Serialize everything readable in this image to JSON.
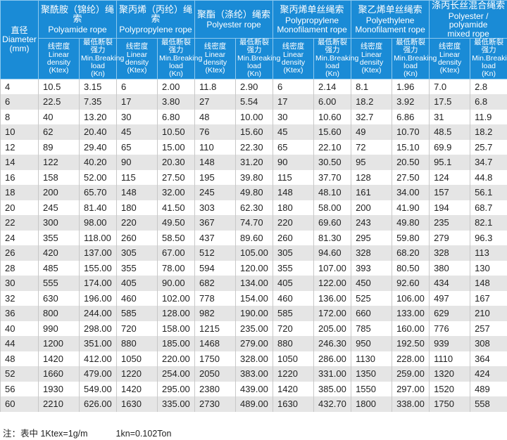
{
  "header": {
    "diameter": [
      "直径",
      "Diameter",
      "(mm)"
    ]
  },
  "groups": [
    {
      "zh": "聚酰胺（锦纶）绳索",
      "en": [
        "Polyamide rope"
      ],
      "columns": [
        {
          "zh": "线密度",
          "en": [
            "Linear density",
            "(Ktex)"
          ]
        },
        {
          "zh": "最低断裂强力",
          "en": [
            "Min.Breaking",
            "load",
            "(Kn)"
          ]
        }
      ]
    },
    {
      "zh": "聚丙烯（丙纶）绳索",
      "en": [
        "Polypropylene rope"
      ],
      "columns": [
        {
          "zh": "线密度",
          "en": [
            "Linear density",
            "(Ktex)"
          ]
        },
        {
          "zh": "最低断裂强力",
          "en": [
            "Min.Breaking",
            "load",
            "(Kn)"
          ]
        }
      ]
    },
    {
      "zh": "聚酯（涤纶）绳索",
      "en": [
        "Polyester rope"
      ],
      "columns": [
        {
          "zh": "线密度",
          "en": [
            "Linear density",
            "(Ktex)"
          ]
        },
        {
          "zh": "最低断裂强力",
          "en": [
            "Min.Breaking",
            "load",
            "(Kn)"
          ]
        }
      ]
    },
    {
      "zh": "聚丙烯单丝绳索",
      "en": [
        "Polypropylene",
        "Monofilament rope"
      ],
      "columns": [
        {
          "zh": "线密度",
          "en": [
            "Linear density",
            "(Ktex)"
          ]
        },
        {
          "zh": "最低断裂强力",
          "en": [
            "Min.Breaking",
            "load",
            "(Kn)"
          ]
        }
      ]
    },
    {
      "zh": "聚乙烯单丝绳索",
      "en": [
        "Polyethylene",
        "Monofilament rope"
      ],
      "columns": [
        {
          "zh": "线密度",
          "en": [
            "Linear density",
            "(Ktex)"
          ]
        },
        {
          "zh": "最低断裂强力",
          "en": [
            "Min.Breaking",
            "load",
            "(Kn)"
          ]
        }
      ]
    },
    {
      "zh": "涤丙长丝混合绳索",
      "en": [
        "Polyester / polyamide",
        "mixed rope"
      ],
      "columns": [
        {
          "zh": "线密度",
          "en": [
            "Linear density",
            "(Ktex)"
          ]
        },
        {
          "zh": "最低断裂强力",
          "en": [
            "Min.Breaking",
            "load",
            "(Kn)"
          ]
        }
      ]
    }
  ],
  "rows": [
    [
      "4",
      "10.5",
      "3.15",
      "6",
      "2.00",
      "11.8",
      "2.90",
      "6",
      "2.14",
      "8.1",
      "1.96",
      "7.0",
      "2.8"
    ],
    [
      "6",
      "22.5",
      "7.35",
      "17",
      "3.80",
      "27",
      "5.54",
      "17",
      "6.00",
      "18.2",
      "3.92",
      "17.5",
      "6.8"
    ],
    [
      "8",
      "40",
      "13.20",
      "30",
      "6.80",
      "48",
      "10.00",
      "30",
      "10.60",
      "32.7",
      "6.86",
      "31",
      "11.9"
    ],
    [
      "10",
      "62",
      "20.40",
      "45",
      "10.50",
      "76",
      "15.60",
      "45",
      "15.60",
      "49",
      "10.70",
      "48.5",
      "18.2"
    ],
    [
      "12",
      "89",
      "29.40",
      "65",
      "15.00",
      "110",
      "22.30",
      "65",
      "22.10",
      "72",
      "15.10",
      "69.9",
      "25.7"
    ],
    [
      "14",
      "122",
      "40.20",
      "90",
      "20.30",
      "148",
      "31.20",
      "90",
      "30.50",
      "95",
      "20.50",
      "95.1",
      "34.7"
    ],
    [
      "16",
      "158",
      "52.00",
      "115",
      "27.50",
      "195",
      "39.80",
      "115",
      "37.70",
      "128",
      "27.50",
      "124",
      "44.8"
    ],
    [
      "18",
      "200",
      "65.70",
      "148",
      "32.00",
      "245",
      "49.80",
      "148",
      "48.10",
      "161",
      "34.00",
      "157",
      "56.1"
    ],
    [
      "20",
      "245",
      "81.40",
      "180",
      "41.50",
      "303",
      "62.30",
      "180",
      "58.00",
      "200",
      "41.90",
      "194",
      "68.7"
    ],
    [
      "22",
      "300",
      "98.00",
      "220",
      "49.50",
      "367",
      "74.70",
      "220",
      "69.60",
      "243",
      "49.80",
      "235",
      "82.1"
    ],
    [
      "24",
      "355",
      "118.00",
      "260",
      "58.50",
      "437",
      "89.60",
      "260",
      "81.30",
      "295",
      "59.80",
      "279",
      "96.3"
    ],
    [
      "26",
      "420",
      "137.00",
      "305",
      "67.00",
      "512",
      "105.00",
      "305",
      "94.60",
      "328",
      "68.20",
      "328",
      "113"
    ],
    [
      "28",
      "485",
      "155.00",
      "355",
      "78.00",
      "594",
      "120.00",
      "355",
      "107.00",
      "393",
      "80.50",
      "380",
      "130"
    ],
    [
      "30",
      "555",
      "174.00",
      "405",
      "90.00",
      "682",
      "134.00",
      "405",
      "122.00",
      "450",
      "92.60",
      "434",
      "148"
    ],
    [
      "32",
      "630",
      "196.00",
      "460",
      "102.00",
      "778",
      "154.00",
      "460",
      "136.00",
      "525",
      "106.00",
      "497",
      "167"
    ],
    [
      "36",
      "800",
      "244.00",
      "585",
      "128.00",
      "982",
      "190.00",
      "585",
      "172.00",
      "660",
      "133.00",
      "629",
      "210"
    ],
    [
      "40",
      "990",
      "298.00",
      "720",
      "158.00",
      "1215",
      "235.00",
      "720",
      "205.00",
      "785",
      "160.00",
      "776",
      "257"
    ],
    [
      "44",
      "1200",
      "351.00",
      "880",
      "185.00",
      "1468",
      "279.00",
      "880",
      "246.30",
      "950",
      "192.50",
      "939",
      "308"
    ],
    [
      "48",
      "1420",
      "412.00",
      "1050",
      "220.00",
      "1750",
      "328.00",
      "1050",
      "286.00",
      "1130",
      "228.00",
      "1110",
      "364"
    ],
    [
      "52",
      "1660",
      "479.00",
      "1220",
      "254.00",
      "2050",
      "383.00",
      "1220",
      "331.00",
      "1350",
      "259.00",
      "1320",
      "424"
    ],
    [
      "56",
      "1930",
      "549.00",
      "1420",
      "295.00",
      "2380",
      "439.00",
      "1420",
      "385.00",
      "1550",
      "297.00",
      "1520",
      "489"
    ],
    [
      "60",
      "2210",
      "626.00",
      "1630",
      "335.00",
      "2730",
      "489.00",
      "1630",
      "432.70",
      "1800",
      "338.00",
      "1750",
      "558"
    ]
  ],
  "footnote": [
    "注：表中 1Ktex=1g/m",
    "1kn=0.102Ton"
  ]
}
